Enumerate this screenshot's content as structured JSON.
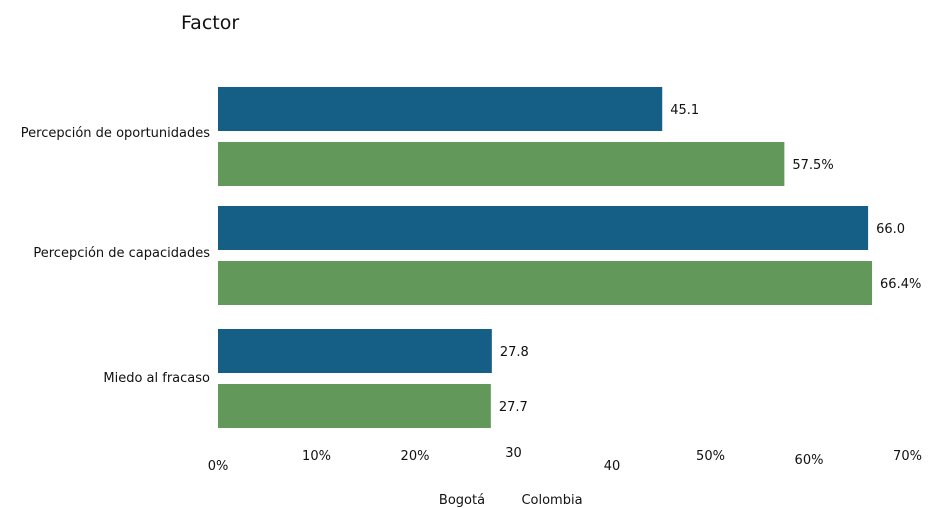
{
  "chart_data": {
    "type": "bar",
    "orientation": "horizontal",
    "title": "Factor",
    "categories": [
      "Percepción de oportunidades",
      "Percepción de capacidades",
      "Miedo al fracaso"
    ],
    "series": [
      {
        "name": "Bogotá",
        "color": "#155e86",
        "values": [
          45.1,
          66.0,
          27.8
        ],
        "value_labels": [
          "45.1",
          "66.0",
          "27.8"
        ]
      },
      {
        "name": "Colombia",
        "color": "#62985a",
        "values": [
          57.5,
          66.4,
          27.7
        ],
        "value_labels": [
          "57.5%",
          "66.4%",
          "27.7"
        ]
      }
    ],
    "x_ticks": [
      0,
      10,
      20,
      30,
      40,
      50,
      60,
      70
    ],
    "x_tick_labels": [
      "0%",
      "10%",
      "20%",
      "30",
      "40",
      "50%",
      "60%",
      "70%"
    ],
    "xlim": [
      0,
      70
    ],
    "grid": false,
    "legend_position": "bottom"
  }
}
